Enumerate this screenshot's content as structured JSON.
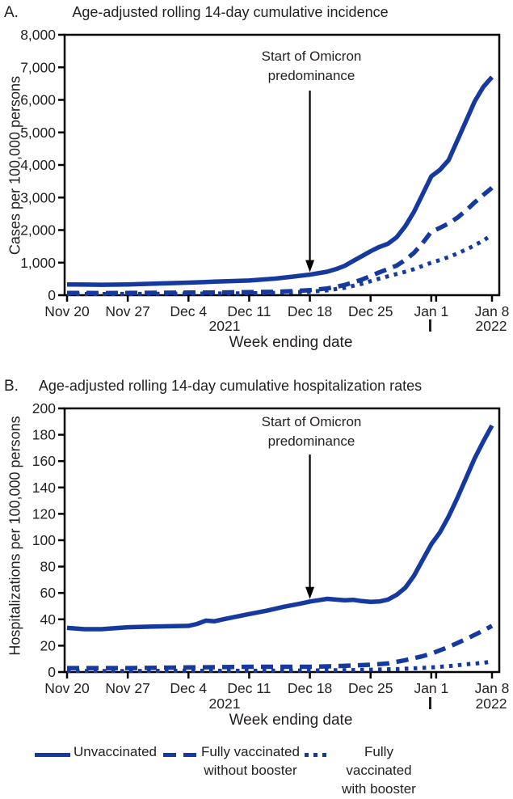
{
  "colors": {
    "line_blue": "#16399f",
    "text": "#231f20",
    "axis": "#000000",
    "background": "#ffffff"
  },
  "figure": {
    "panels": [
      {
        "letter": "A.",
        "year_left": "2021",
        "year_right": "2022"
      },
      {
        "letter": "B.",
        "year_left": "2021",
        "year_right": "2022"
      }
    ],
    "legend": {
      "items": [
        {
          "style": "solid",
          "lines": [
            "Unvaccinated",
            ""
          ]
        },
        {
          "style": "dashed",
          "lines": [
            "Fully vaccinated",
            "without booster"
          ]
        },
        {
          "style": "dotted",
          "lines": [
            "Fully vaccinated",
            "with booster"
          ]
        }
      ]
    }
  },
  "chart_data": [
    {
      "type": "line",
      "title": "Age-adjusted rolling 14-day cumulative incidence",
      "xlabel": "Week ending date",
      "ylabel": "Cases per 100,000 persons",
      "ylim": [
        0,
        8000
      ],
      "y_tick_labels": [
        "0",
        "1,000",
        "2,000",
        "3,000",
        "4,000",
        "5,000",
        "6,000",
        "7,000",
        "8,000"
      ],
      "x_tick_labels": [
        "Nov 20",
        "Nov 27",
        "Dec 4",
        "Dec 11",
        "Dec 18",
        "Dec 25",
        "Jan 1",
        "Jan 8"
      ],
      "x_unit": "days since Nov 20, 2021",
      "x_max_day": 49,
      "year_labels": [
        "2021",
        "2022"
      ],
      "year_divider_after_tick_index": 6,
      "grid": false,
      "legend_position": "bottom",
      "annotation": {
        "lines": [
          "Start of Omicron",
          "predominance"
        ],
        "x_day": 28
      },
      "series": [
        {
          "name": "Unvaccinated",
          "style": "solid",
          "x_days": [
            0,
            2,
            4,
            7,
            10,
            14,
            17,
            21,
            24,
            26,
            28,
            30,
            31,
            32,
            33,
            34,
            35,
            36,
            37,
            38,
            39,
            40,
            41,
            42,
            43,
            44,
            45,
            46,
            47,
            48,
            49
          ],
          "values": [
            330,
            325,
            320,
            330,
            355,
            385,
            415,
            450,
            510,
            570,
            630,
            720,
            800,
            900,
            1050,
            1200,
            1350,
            1480,
            1580,
            1780,
            2120,
            2560,
            3100,
            3650,
            3850,
            4150,
            4750,
            5350,
            5950,
            6400,
            6700
          ]
        },
        {
          "name": "Fully vaccinated without booster",
          "style": "dashed",
          "x_days": [
            0,
            4,
            7,
            11,
            14,
            18,
            21,
            24,
            26,
            28,
            30,
            32,
            34,
            35,
            36,
            37,
            38,
            39,
            40,
            41,
            42,
            43,
            44,
            45,
            46,
            47,
            48,
            49
          ],
          "values": [
            70,
            65,
            70,
            75,
            80,
            85,
            95,
            105,
            125,
            155,
            205,
            310,
            480,
            590,
            700,
            800,
            910,
            1080,
            1300,
            1600,
            1950,
            2070,
            2200,
            2380,
            2600,
            2850,
            3080,
            3300
          ]
        },
        {
          "name": "Fully vaccinated with booster",
          "style": "dotted",
          "x_days": [
            0,
            4,
            7,
            11,
            14,
            18,
            21,
            24,
            26,
            28,
            30,
            32,
            34,
            35,
            36,
            37,
            38,
            39,
            40,
            41,
            42,
            43,
            44,
            45,
            46,
            47,
            48,
            49
          ],
          "values": [
            40,
            38,
            40,
            44,
            48,
            53,
            60,
            72,
            88,
            108,
            150,
            225,
            350,
            430,
            510,
            580,
            650,
            720,
            800,
            900,
            1000,
            1080,
            1170,
            1280,
            1400,
            1530,
            1680,
            1850
          ]
        }
      ]
    },
    {
      "type": "line",
      "title": "Age-adjusted rolling 14-day cumulative hospitalization rates",
      "xlabel": "Week ending date",
      "ylabel": "Hospitalizations per 100,000 persons",
      "ylim": [
        0,
        200
      ],
      "y_tick_labels": [
        "0",
        "20",
        "40",
        "60",
        "80",
        "100",
        "120",
        "140",
        "160",
        "180",
        "200"
      ],
      "x_tick_labels": [
        "Nov 20",
        "Nov 27",
        "Dec 4",
        "Dec 11",
        "Dec 18",
        "Dec 25",
        "Jan 1",
        "Jan 8"
      ],
      "x_unit": "days since Nov 20, 2021",
      "x_max_day": 49,
      "year_labels": [
        "2021",
        "2022"
      ],
      "year_divider_after_tick_index": 6,
      "grid": false,
      "legend_position": "bottom",
      "annotation": {
        "lines": [
          "Start of Omicron",
          "predominance"
        ],
        "x_day": 28
      },
      "series": [
        {
          "name": "Unvaccinated",
          "style": "solid",
          "x_days": [
            0,
            2,
            4,
            7,
            10,
            14,
            15,
            16,
            17,
            18,
            21,
            23,
            25,
            27,
            28,
            29,
            30,
            31,
            32,
            33,
            34,
            35,
            36,
            37,
            38,
            39,
            40,
            41,
            42,
            43,
            44,
            45,
            46,
            47,
            48,
            49
          ],
          "values": [
            33.5,
            32.5,
            32.5,
            34,
            34.5,
            35,
            36.5,
            39,
            38.5,
            40,
            44,
            46.5,
            49.5,
            52,
            53.5,
            54.5,
            55.5,
            55,
            54.5,
            54.8,
            53.8,
            53.2,
            53.5,
            55,
            58.5,
            64,
            73,
            85,
            97,
            106,
            118,
            132,
            147,
            162,
            175,
            187
          ]
        },
        {
          "name": "Fully vaccinated without booster",
          "style": "dashed",
          "x_days": [
            0,
            7,
            14,
            21,
            28,
            31,
            33,
            35,
            37,
            39,
            41,
            42,
            44,
            46,
            48,
            49
          ],
          "values": [
            3,
            3,
            3.5,
            4,
            4,
            4.5,
            5,
            5.5,
            6.5,
            9,
            12,
            14,
            19,
            25,
            31.5,
            35
          ]
        },
        {
          "name": "Fully vaccinated with booster",
          "style": "dotted",
          "x_days": [
            0,
            7,
            14,
            21,
            28,
            33,
            35,
            38,
            40,
            42,
            44,
            46,
            48,
            49
          ],
          "values": [
            0.8,
            0.8,
            1,
            1,
            1.2,
            1.5,
            1.8,
            2.2,
            2.8,
            3.5,
            4.5,
            5.8,
            7,
            8
          ]
        }
      ]
    }
  ]
}
